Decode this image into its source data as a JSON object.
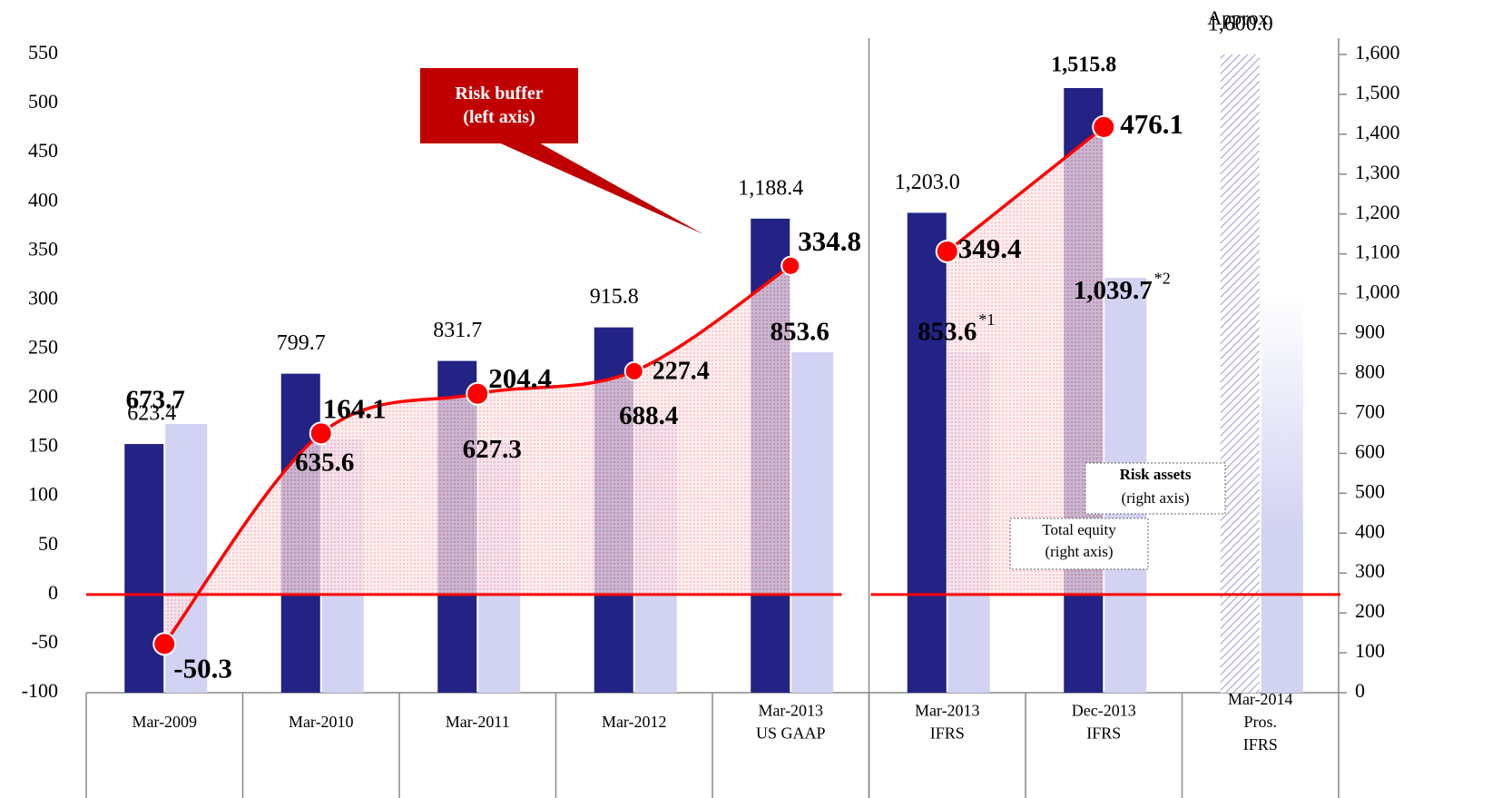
{
  "chart_data": {
    "type": "bar_line",
    "categories": [
      [
        "Mar-2009"
      ],
      [
        "Mar-2010"
      ],
      [
        "Mar-2011"
      ],
      [
        "Mar-2012"
      ],
      [
        "Mar-2013",
        "US GAAP"
      ],
      [
        "Mar-2013",
        "IFRS"
      ],
      [
        "Dec-2013",
        "IFRS"
      ],
      [
        "Mar-2014",
        "Pros.",
        "IFRS"
      ]
    ],
    "divider_before": 5,
    "projected_index": 7,
    "series": [
      {
        "name": "Total equity",
        "note": "(right axis)",
        "type": "bar",
        "axis": "y2",
        "color": "#232385",
        "values": [
          623.4,
          799.7,
          831.7,
          915.8,
          1188.4,
          1203.0,
          1515.8,
          1600.0
        ],
        "value_labels": [
          "623.4",
          "799.7",
          "831.7",
          "915.8",
          "1,188.4",
          "1,203.0",
          "1,515.8",
          "1,600.0"
        ]
      },
      {
        "name": "Risk assets",
        "note": "(right axis)",
        "type": "bar",
        "axis": "y2",
        "color": "#d2d2f2",
        "values": [
          673.7,
          635.6,
          627.3,
          688.4,
          853.6,
          853.6,
          1039.7,
          1000
        ],
        "value_labels": [
          "673.7",
          "635.6",
          "627.3",
          "688.4",
          "853.6",
          "853.6",
          "1,039.7",
          null
        ],
        "value_notes": [
          null,
          null,
          null,
          null,
          null,
          "*1",
          "*2",
          null
        ]
      },
      {
        "name": "Risk buffer",
        "note": "(left axis)",
        "type": "line",
        "axis": "y",
        "color": "#ff0000",
        "values": [
          -50.3,
          164.1,
          204.4,
          227.4,
          334.8,
          349.4,
          476.1,
          null
        ]
      }
    ],
    "annotations": [
      "Approx."
    ],
    "ylim": [
      -100,
      550
    ],
    "yticks": [
      -100,
      -50,
      0,
      50,
      100,
      150,
      200,
      250,
      300,
      350,
      400,
      450,
      500,
      550
    ],
    "y2lim": [
      0,
      1600
    ],
    "y2ticks": [
      0,
      100,
      200,
      300,
      400,
      500,
      600,
      700,
      800,
      900,
      {
        "value": 1000,
        "label": "1,000"
      },
      {
        "value": 1100,
        "label": "1,100"
      },
      {
        "value": 1200,
        "label": "1,200"
      },
      {
        "value": 1300,
        "label": "1,300"
      },
      {
        "value": 1400,
        "label": "1,400"
      },
      {
        "value": 1500,
        "label": "1,500"
      },
      {
        "value": 1600,
        "label": "1,600"
      }
    ]
  }
}
